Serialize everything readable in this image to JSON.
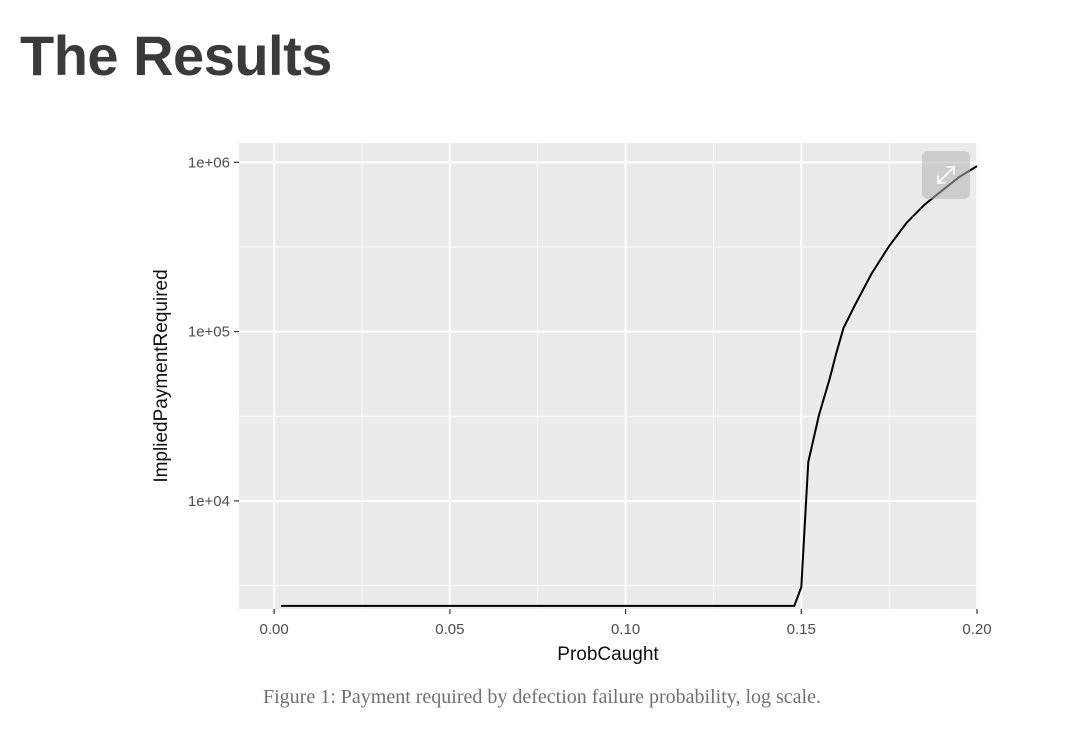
{
  "page": {
    "heading": "The Results",
    "caption": "Figure 1: Payment required by defection failure probability, log scale."
  },
  "icons": {
    "expand": "expand-arrows-icon"
  },
  "colors": {
    "panel": "#ebebeb",
    "grid": "#ffffff",
    "line": "#000000"
  },
  "chart_data": {
    "type": "line",
    "xlabel": "ProbCaught",
    "ylabel": "ImpliedPaymentRequired",
    "xscale": "linear",
    "yscale": "log10",
    "xlim": [
      -0.01,
      0.2
    ],
    "ylim": [
      2300,
      1300000
    ],
    "xticks": [
      0.0,
      0.05,
      0.1,
      0.15,
      0.2
    ],
    "xtick_labels": [
      "0.00",
      "0.05",
      "0.10",
      "0.15",
      "0.20"
    ],
    "yticks": [
      10000,
      100000,
      1000000
    ],
    "ytick_labels": [
      "1e+04",
      "1e+05",
      "1e+06"
    ],
    "grid": true,
    "legend": "none",
    "series": [
      {
        "x": [
          0.002,
          0.148,
          0.15,
          0.152,
          0.155,
          0.158,
          0.16,
          0.162,
          0.165,
          0.17,
          0.175,
          0.18,
          0.185,
          0.19,
          0.195,
          0.2
        ],
        "y": [
          2400,
          2400,
          3100,
          17000,
          32000,
          52000,
          75000,
          105000,
          140000,
          220000,
          320000,
          440000,
          560000,
          680000,
          820000,
          950000
        ]
      }
    ]
  }
}
